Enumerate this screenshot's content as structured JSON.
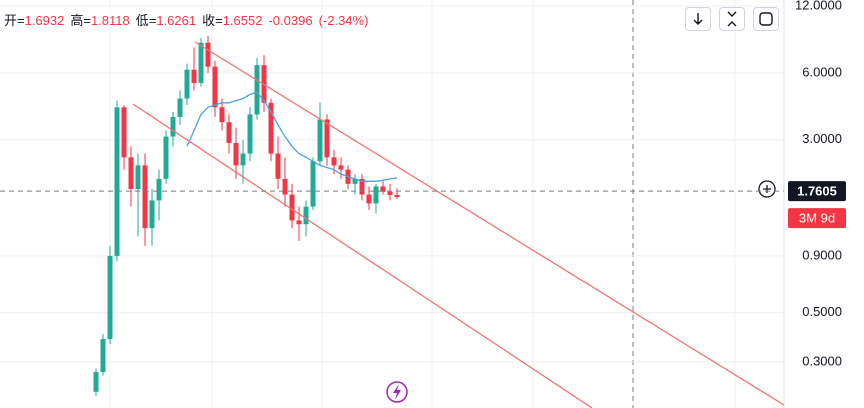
{
  "header": {
    "items": [
      {
        "label": "开=",
        "value": "1.6932"
      },
      {
        "label": "高=",
        "value": "1.8118"
      },
      {
        "label": "低=",
        "value": "1.6261"
      },
      {
        "label": "收=",
        "value": "1.6552"
      }
    ],
    "change": "-0.0396",
    "change_pct": "(-2.34%)"
  },
  "chart_data": {
    "type": "candlestick",
    "log_scale": true,
    "grid": true,
    "up_color": "#22ab94",
    "down_color": "#f23645",
    "ylim": [
      0.186,
      12.77
    ],
    "yticks": [
      {
        "value": 12,
        "label": "12.0000"
      },
      {
        "value": 6,
        "label": "6.0000"
      },
      {
        "value": 3,
        "label": "3.0000"
      },
      {
        "value": 0.9,
        "label": "0.9000"
      },
      {
        "value": 0.5,
        "label": "0.5000"
      },
      {
        "value": 0.3,
        "label": "0.3000"
      }
    ],
    "open": [
      0.22,
      0.27,
      0.38,
      0.9,
      4.2,
      2.5,
      1.8,
      2.3,
      1.2,
      1.6,
      2.0,
      3.1,
      3.8,
      4.6,
      6.2,
      5.4,
      8.2,
      6.4,
      4.2,
      3.6,
      2.9,
      2.3,
      2.6,
      3.9,
      6.5,
      4.4,
      2.6,
      2.0,
      1.7,
      1.3,
      1.25,
      1.5,
      2.4,
      3.7,
      2.5,
      2.3,
      2.2,
      1.9,
      2.0,
      1.7,
      1.55,
      1.85,
      1.75,
      1.6932
    ],
    "high": [
      0.28,
      0.4,
      1.0,
      4.5,
      4.3,
      2.8,
      2.6,
      2.6,
      1.8,
      2.2,
      3.3,
      4.0,
      5.0,
      6.6,
      7.8,
      8.6,
      8.8,
      6.8,
      4.6,
      3.9,
      3.4,
      3.0,
      4.2,
      7.0,
      7.2,
      4.6,
      3.1,
      2.5,
      1.9,
      1.5,
      1.6,
      2.5,
      4.4,
      3.9,
      2.7,
      2.5,
      2.3,
      2.1,
      2.1,
      1.85,
      1.9,
      1.95,
      1.9,
      1.8118
    ],
    "low": [
      0.21,
      0.26,
      0.36,
      0.85,
      2.2,
      1.5,
      1.1,
      1.0,
      1.0,
      1.3,
      1.9,
      2.8,
      3.5,
      4.3,
      5.0,
      5.2,
      6.0,
      3.8,
      3.3,
      2.6,
      2.0,
      1.9,
      2.4,
      3.7,
      4.0,
      2.4,
      1.8,
      1.5,
      1.2,
      1.05,
      1.1,
      1.45,
      2.3,
      2.3,
      2.1,
      2.0,
      1.8,
      1.7,
      1.6,
      1.45,
      1.4,
      1.7,
      1.6,
      1.6261
    ],
    "close": [
      0.27,
      0.38,
      0.9,
      4.2,
      2.5,
      1.8,
      2.3,
      1.2,
      1.6,
      2.0,
      3.1,
      3.8,
      4.6,
      6.2,
      5.4,
      8.2,
      6.4,
      4.2,
      3.6,
      2.9,
      2.3,
      2.6,
      3.9,
      6.5,
      4.4,
      2.6,
      2.0,
      1.7,
      1.3,
      1.25,
      1.5,
      2.4,
      3.7,
      2.5,
      2.3,
      2.2,
      1.9,
      2.0,
      1.7,
      1.55,
      1.85,
      1.75,
      1.69,
      1.6552
    ],
    "ma": {
      "color": "#4aa3df",
      "values": [
        null,
        null,
        null,
        null,
        null,
        null,
        null,
        null,
        null,
        null,
        null,
        null,
        null,
        2.8,
        3.3,
        3.9,
        4.2,
        4.3,
        4.4,
        4.4,
        4.5,
        4.6,
        4.8,
        4.9,
        4.5,
        4.0,
        3.5,
        3.1,
        2.8,
        2.6,
        2.5,
        2.4,
        2.3,
        2.25,
        2.2,
        2.1,
        2.05,
        2.0,
        1.95,
        1.95,
        1.95,
        1.97,
        2.0,
        2.02
      ]
    },
    "price_label": {
      "value": 1.7605,
      "label": "1.7605"
    },
    "countdown": "3M 9d"
  }
}
